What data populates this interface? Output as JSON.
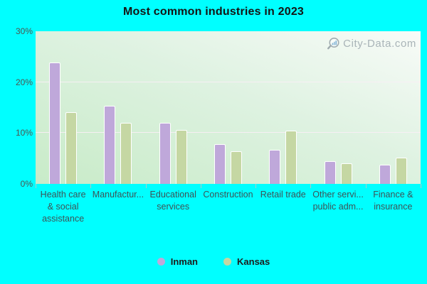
{
  "title": "Most common industries in 2023",
  "watermark": {
    "text": "City-Data.com"
  },
  "colors": {
    "page_background": "#00ffff",
    "plot_gradient_light": "#f8fbf8",
    "plot_gradient_green": "#c8ebc8",
    "inman_bar": "#bfa8da",
    "kansas_bar": "#c5d7a3",
    "watermark_text": "#a9b4b8"
  },
  "chart_data": {
    "type": "bar",
    "title": "Most common industries in 2023",
    "categories": [
      "Health care & social assistance",
      "Manufactur...",
      "Educational services",
      "Construction",
      "Retail trade",
      "Other servi... public adm...",
      "Finance & insurance"
    ],
    "category_display_lines": [
      [
        "Health care",
        "& social",
        "assistance"
      ],
      [
        "Manufactur..."
      ],
      [
        "Educational",
        "services"
      ],
      [
        "Construction"
      ],
      [
        "Retail trade"
      ],
      [
        "Other servi...",
        "public adm..."
      ],
      [
        "Finance &",
        "insurance"
      ]
    ],
    "series": [
      {
        "name": "Inman",
        "color": "#bfa8da",
        "values": [
          23.8,
          15.3,
          12.0,
          7.8,
          6.7,
          4.5,
          3.8
        ]
      },
      {
        "name": "Kansas",
        "color": "#c5d7a3",
        "values": [
          14.1,
          12.0,
          10.6,
          6.4,
          10.5,
          4.0,
          5.2
        ]
      }
    ],
    "xlabel": "",
    "ylabel": "",
    "ylim": [
      0,
      30
    ],
    "ytick_values": [
      0,
      10,
      20,
      30
    ],
    "ytick_labels": [
      "0%",
      "10%",
      "20%",
      "30%"
    ],
    "grid": true,
    "legend_position": "bottom"
  }
}
